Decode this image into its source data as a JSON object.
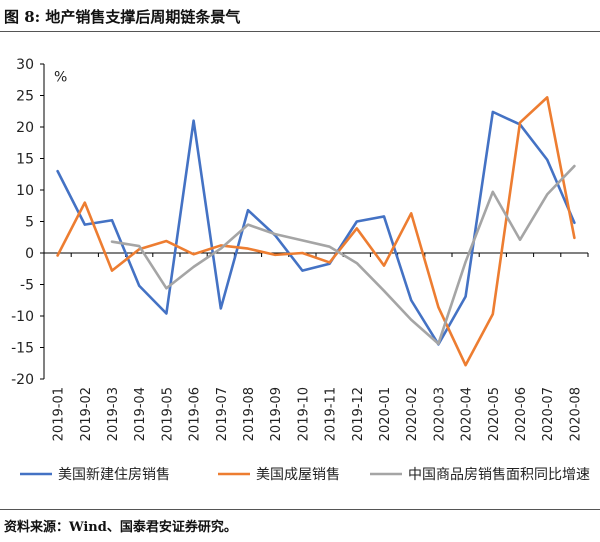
{
  "figure": {
    "title": "图 8:  地产销售支撑后周期链条景气",
    "source": "资料来源：Wind、国泰君安证券研究。"
  },
  "colors": {
    "series1": "#4472C4",
    "series2": "#ED7D31",
    "series3": "#A5A5A5",
    "axis": "#000000",
    "text": "#222222"
  },
  "chart_data": {
    "type": "line",
    "ylabel": "%",
    "ylim": [
      -20,
      30
    ],
    "yticks": [
      30,
      25,
      20,
      15,
      10,
      5,
      0,
      -5,
      -10,
      -15,
      -20
    ],
    "grid": false,
    "legend_position": "bottom",
    "categories": [
      "2019-01",
      "2019-02",
      "2019-03",
      "2019-04",
      "2019-05",
      "2019-06",
      "2019-07",
      "2019-08",
      "2019-09",
      "2019-10",
      "2019-11",
      "2019-12",
      "2020-01",
      "2020-02",
      "2020-03",
      "2020-04",
      "2020-05",
      "2020-06",
      "2020-07",
      "2020-08"
    ],
    "series": [
      {
        "name": "美国新建住房销售",
        "color": "#4472C4",
        "values": [
          13,
          4.5,
          5.2,
          -5.2,
          -9.6,
          21,
          -8.8,
          6.8,
          2.8,
          -2.8,
          -1.7,
          5,
          5.8,
          -7.5,
          -14.5,
          -6.9,
          22.4,
          20.4,
          14.8,
          4.8
        ]
      },
      {
        "name": "美国成屋销售",
        "color": "#ED7D31",
        "values": [
          -0.4,
          8,
          -2.8,
          0.6,
          1.9,
          -0.2,
          1.2,
          0.7,
          -0.3,
          0,
          -1.5,
          3.9,
          -2,
          6.3,
          -8.6,
          -17.8,
          -9.7,
          20.7,
          24.7,
          2.4
        ]
      },
      {
        "name": "中国商品房销售面积同比增速",
        "color": "#A5A5A5",
        "values": [
          null,
          null,
          1.8,
          1.1,
          -5.6,
          -2.2,
          0.7,
          4.5,
          3,
          2,
          1,
          -1.6,
          -6,
          -10.6,
          -14.4,
          -1.4,
          9.7,
          2.1,
          9.3,
          13.8
        ]
      }
    ]
  }
}
